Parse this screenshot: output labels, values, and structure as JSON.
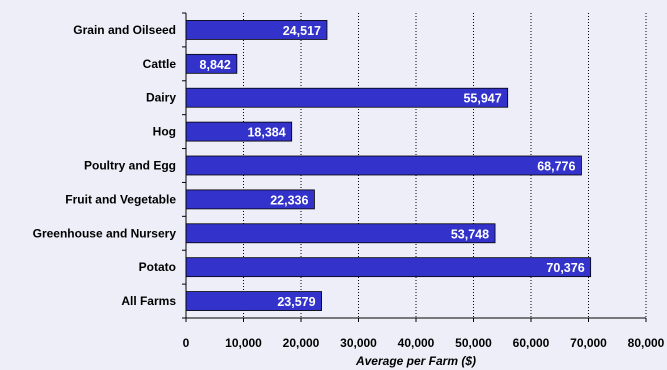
{
  "chart_data": {
    "type": "bar",
    "orientation": "horizontal",
    "categories": [
      "Grain and Oilseed",
      "Cattle",
      "Dairy",
      "Hog",
      "Poultry and Egg",
      "Fruit and Vegetable",
      "Greenhouse and Nursery",
      "Potato",
      "All Farms"
    ],
    "values": [
      24517,
      8842,
      55947,
      18384,
      68776,
      22336,
      53748,
      70376,
      23579
    ],
    "value_labels": [
      "24,517",
      "8,842",
      "55,947",
      "18,384",
      "68,776",
      "22,336",
      "53,748",
      "70,376",
      "23,579"
    ],
    "xlabel": "Average per Farm ($)",
    "ylabel": "",
    "xlim": [
      0,
      80000
    ],
    "x_ticks": [
      0,
      10000,
      20000,
      30000,
      40000,
      50000,
      60000,
      70000,
      80000
    ],
    "x_tick_labels": [
      "0",
      "10,000",
      "20,000",
      "30,000",
      "40,000",
      "50,000",
      "60,000",
      "70,000",
      "80,000"
    ],
    "grid": "vertical dotted",
    "legend": "none",
    "colors": {
      "bar": "#3333cc",
      "bar_border": "#000000",
      "background": "#eeeef8",
      "label_text": "#ffffff"
    }
  }
}
